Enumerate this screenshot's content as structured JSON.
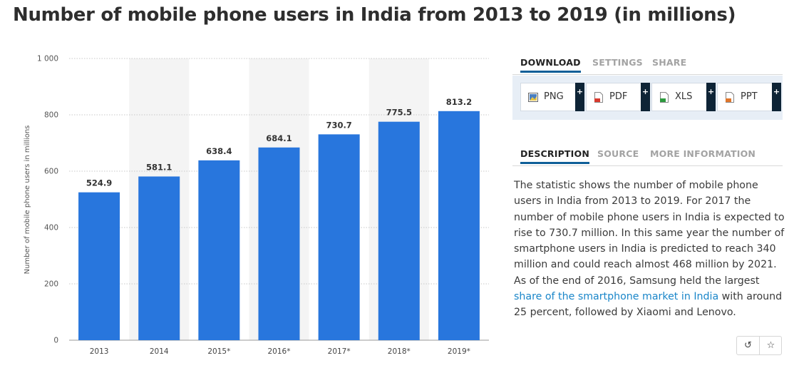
{
  "title": "Number of mobile phone users in India from 2013 to 2019 (in millions)",
  "chart_data": {
    "type": "bar",
    "categories": [
      "2013",
      "2014",
      "2015*",
      "2016*",
      "2017*",
      "2018*",
      "2019*"
    ],
    "values": [
      524.9,
      581.1,
      638.4,
      684.1,
      730.7,
      775.5,
      813.2
    ],
    "value_labels": [
      "524.9",
      "581.1",
      "638.4",
      "684.1",
      "730.7",
      "775.5",
      "813.2"
    ],
    "ylabel": "Number of mobile phone users in millions",
    "xlabel": "",
    "ylim": [
      0,
      1000
    ],
    "yticks": [
      0,
      200,
      400,
      600,
      800,
      1000
    ],
    "ytick_labels": [
      "0",
      "200",
      "400",
      "600",
      "800",
      "1 000"
    ],
    "bar_color": "#2876dd",
    "band_color": "#f4f4f4",
    "grid": true
  },
  "download_tabs": [
    {
      "label": "DOWNLOAD",
      "active": true
    },
    {
      "label": "SETTINGS",
      "active": false
    },
    {
      "label": "SHARE",
      "active": false
    }
  ],
  "downloads": [
    {
      "label": "PNG",
      "icon": "png-file-icon",
      "icon_color": "#4a7fc1"
    },
    {
      "label": "PDF",
      "icon": "pdf-file-icon",
      "icon_color": "#d83a2e"
    },
    {
      "label": "XLS",
      "icon": "xls-file-icon",
      "icon_color": "#2e9b3f"
    },
    {
      "label": "PPT",
      "icon": "ppt-file-icon",
      "icon_color": "#e0762b"
    }
  ],
  "plus_label": "+",
  "info_tabs": [
    {
      "label": "DESCRIPTION",
      "active": true
    },
    {
      "label": "SOURCE",
      "active": false
    },
    {
      "label": "MORE INFORMATION",
      "active": false
    }
  ],
  "description": {
    "before_link": "The statistic shows the number of mobile phone users in India from 2013 to 2019. For 2017 the number of mobile phone users in India is expected to rise to 730.7 million. In this same year the number of smartphone users in India is predicted to reach 340 million and could reach almost 468 million by 2021. As of the end of 2016, Samsung held the largest ",
    "link_text": "share of the smartphone market in India",
    "after_link": " with around 25 percent, followed by Xiaomi and Lenovo."
  },
  "toolbar": {
    "history_glyph": "↺",
    "star_glyph": "☆"
  }
}
